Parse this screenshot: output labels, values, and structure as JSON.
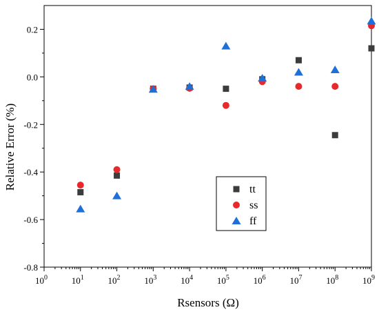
{
  "chart_data": {
    "type": "scatter",
    "xlabel": "Rsensors (Ω)",
    "ylabel": "Relative Error (%)",
    "x_scale": "log",
    "xlim": [
      1,
      1000000000
    ],
    "ylim": [
      -0.8,
      0.3
    ],
    "x_ticks": [
      {
        "value": 1,
        "base": "10",
        "exp": "0"
      },
      {
        "value": 10,
        "base": "10",
        "exp": "1"
      },
      {
        "value": 100,
        "base": "10",
        "exp": "2"
      },
      {
        "value": 1000,
        "base": "10",
        "exp": "3"
      },
      {
        "value": 10000,
        "base": "10",
        "exp": "4"
      },
      {
        "value": 100000,
        "base": "10",
        "exp": "5"
      },
      {
        "value": 1000000,
        "base": "10",
        "exp": "6"
      },
      {
        "value": 10000000,
        "base": "10",
        "exp": "7"
      },
      {
        "value": 100000000,
        "base": "10",
        "exp": "8"
      },
      {
        "value": 1000000000,
        "base": "10",
        "exp": "9"
      }
    ],
    "y_ticks": [
      {
        "value": 0.2,
        "label": "0.2"
      },
      {
        "value": 0.0,
        "label": "0.0"
      },
      {
        "value": -0.2,
        "label": "-0.2"
      },
      {
        "value": -0.4,
        "label": "-0.4"
      },
      {
        "value": -0.6,
        "label": "-0.6"
      },
      {
        "value": -0.8,
        "label": "-0.8"
      }
    ],
    "grid": false,
    "legend_position": "lower-center",
    "x": [
      10,
      100,
      1000,
      10000,
      100000,
      1000000,
      10000000,
      100000000,
      1000000000
    ],
    "series": [
      {
        "name": "tt",
        "marker": "square",
        "color": "#3c3c3c",
        "values": [
          -0.485,
          -0.415,
          -0.05,
          -0.045,
          -0.05,
          -0.01,
          0.07,
          -0.245,
          0.12
        ]
      },
      {
        "name": "ss",
        "marker": "circle",
        "color": "#e8292b",
        "values": [
          -0.455,
          -0.39,
          -0.05,
          -0.048,
          -0.12,
          -0.02,
          -0.04,
          -0.04,
          0.215
        ]
      },
      {
        "name": "ff",
        "marker": "triangle",
        "color": "#1f6fd8",
        "values": [
          -0.555,
          -0.5,
          -0.052,
          -0.04,
          0.13,
          -0.005,
          0.02,
          0.03,
          0.235
        ]
      }
    ]
  }
}
